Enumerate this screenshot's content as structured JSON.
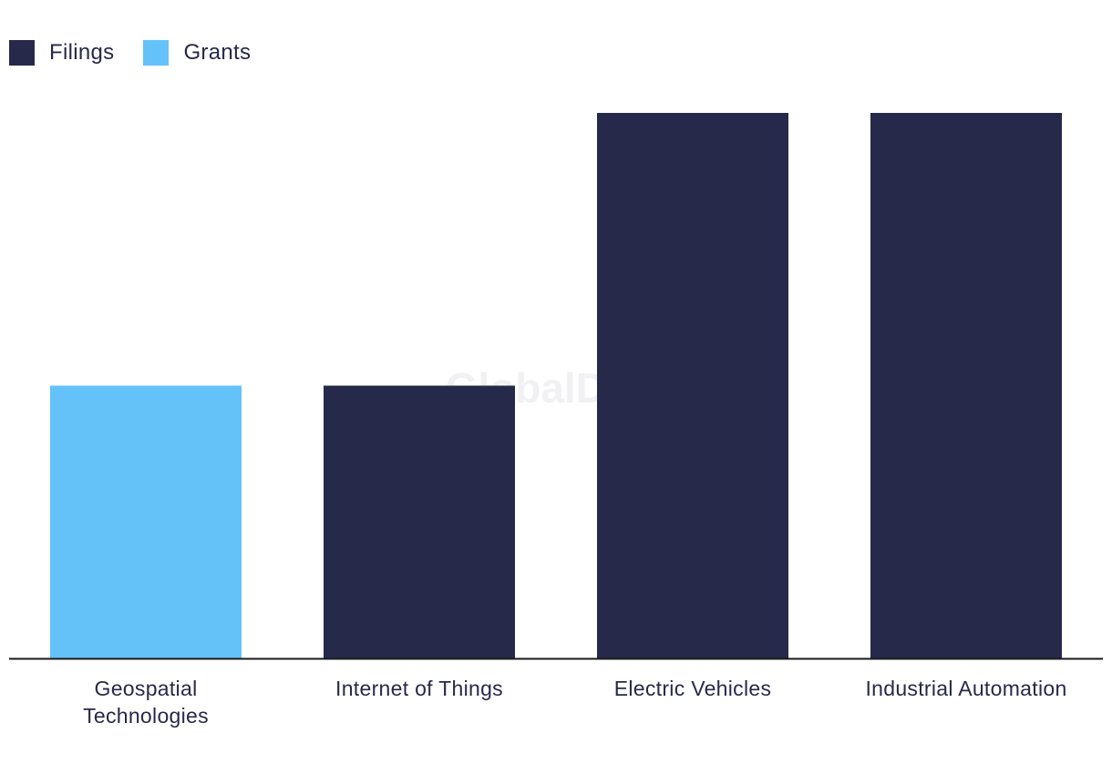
{
  "legend": {
    "items": [
      {
        "label": "Filings",
        "color": "#27294a"
      },
      {
        "label": "Grants",
        "color": "#64c2f9"
      }
    ]
  },
  "watermark": "GlobalData",
  "colors": {
    "filings": "#27294a",
    "grants": "#64c2f9",
    "axis": "#1a1a1a",
    "background": "#ffffff"
  },
  "chart_data": {
    "type": "bar",
    "title": "",
    "xlabel": "",
    "ylabel": "",
    "ylim": [
      0,
      2
    ],
    "grid": false,
    "legend_position": "top-left",
    "categories": [
      [
        "Geospatial",
        "Technologies"
      ],
      [
        "Internet of Things"
      ],
      [
        "Electric Vehicles"
      ],
      [
        "Industrial Automation"
      ]
    ],
    "series": [
      {
        "name": "Filings",
        "color": "#27294a",
        "values": [
          0,
          1,
          2,
          2
        ]
      },
      {
        "name": "Grants",
        "color": "#64c2f9",
        "values": [
          1,
          0,
          0,
          0
        ]
      }
    ]
  }
}
